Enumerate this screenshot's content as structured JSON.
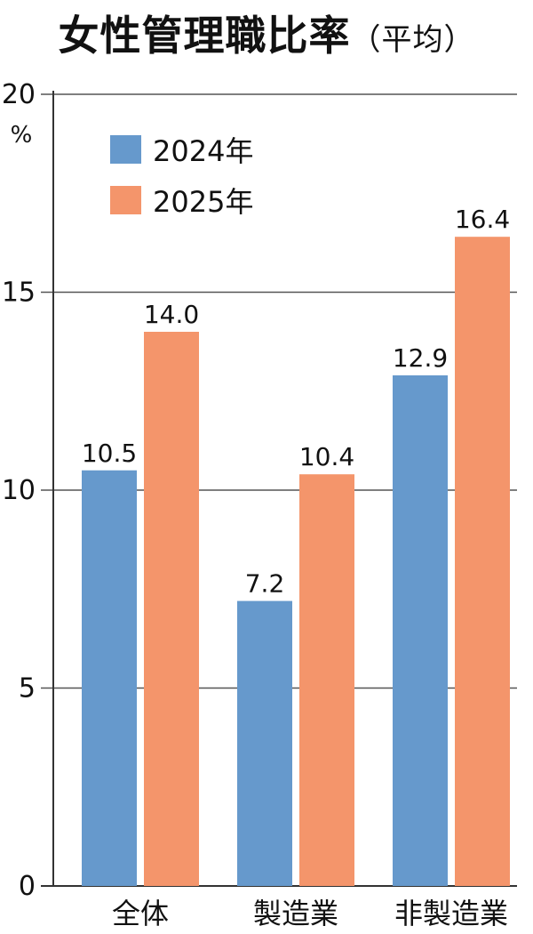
{
  "chart_data": {
    "type": "bar",
    "title": "女性管理職比率",
    "subtitle": "（平均）",
    "ylabel": "%",
    "ylim": [
      0,
      20
    ],
    "yticks": [
      0,
      5,
      10,
      15,
      20
    ],
    "grid": true,
    "legend_position": "top-left",
    "categories": [
      "全体",
      "製造業",
      "非製造業"
    ],
    "series": [
      {
        "name": "2024年",
        "color": "#6699cc",
        "values": [
          10.5,
          7.2,
          12.9
        ],
        "labels": [
          "10.5",
          "7.2",
          "12.9"
        ]
      },
      {
        "name": "2025年",
        "color": "#f4956b",
        "values": [
          14.0,
          10.4,
          16.4
        ],
        "labels": [
          "14.0",
          "10.4",
          "16.4"
        ]
      }
    ]
  }
}
